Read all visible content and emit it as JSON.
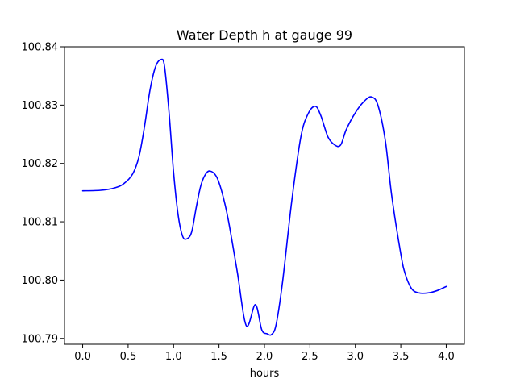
{
  "chart_data": {
    "type": "line",
    "title": "Water Depth h at gauge 99",
    "xlabel": "hours",
    "ylabel": "",
    "xlim": [
      -0.2,
      4.2
    ],
    "ylim": [
      100.789,
      100.84
    ],
    "x_ticks": [
      {
        "value": 0.0,
        "label": "0.0"
      },
      {
        "value": 0.5,
        "label": "0.5"
      },
      {
        "value": 1.0,
        "label": "1.0"
      },
      {
        "value": 1.5,
        "label": "1.5"
      },
      {
        "value": 2.0,
        "label": "2.0"
      },
      {
        "value": 2.5,
        "label": "2.5"
      },
      {
        "value": 3.0,
        "label": "3.0"
      },
      {
        "value": 3.5,
        "label": "3.5"
      },
      {
        "value": 4.0,
        "label": "4.0"
      }
    ],
    "y_ticks": [
      {
        "value": 100.79,
        "label": "100.79"
      },
      {
        "value": 100.8,
        "label": "100.80"
      },
      {
        "value": 100.81,
        "label": "100.81"
      },
      {
        "value": 100.82,
        "label": "100.82"
      },
      {
        "value": 100.83,
        "label": "100.83"
      },
      {
        "value": 100.84,
        "label": "100.84"
      }
    ],
    "grid": false,
    "legend": "none",
    "series": [
      {
        "color": "#0000ff",
        "x": [
          0.0,
          0.2,
          0.35,
          0.45,
          0.55,
          0.62,
          0.68,
          0.74,
          0.8,
          0.86,
          0.9,
          0.95,
          1.0,
          1.05,
          1.1,
          1.15,
          1.2,
          1.25,
          1.3,
          1.35,
          1.4,
          1.47,
          1.53,
          1.6,
          1.7,
          1.8,
          1.9,
          1.97,
          2.03,
          2.08,
          2.13,
          2.2,
          2.3,
          2.4,
          2.48,
          2.56,
          2.62,
          2.7,
          2.78,
          2.84,
          2.9,
          3.0,
          3.1,
          3.18,
          3.25,
          3.33,
          3.4,
          3.5,
          3.55,
          3.62,
          3.7,
          3.8,
          3.9,
          4.0
        ],
        "values": [
          100.8153,
          100.8154,
          100.8158,
          100.8165,
          100.8182,
          100.8212,
          100.8263,
          100.8325,
          100.8365,
          100.8378,
          100.8367,
          100.8288,
          100.8185,
          100.8112,
          100.8075,
          100.8071,
          100.8083,
          100.8125,
          100.8162,
          100.8181,
          100.8187,
          100.8178,
          100.8152,
          100.8105,
          100.8015,
          100.7922,
          100.7958,
          100.7915,
          100.7908,
          100.7907,
          100.7925,
          100.7998,
          100.8135,
          100.8245,
          100.8285,
          100.8298,
          100.8282,
          100.8245,
          100.8231,
          100.8232,
          100.8258,
          100.8287,
          100.8307,
          100.8314,
          100.8299,
          100.8239,
          100.8145,
          100.8045,
          100.801,
          100.7985,
          100.7978,
          100.7978,
          100.7982,
          100.7989
        ]
      }
    ]
  }
}
